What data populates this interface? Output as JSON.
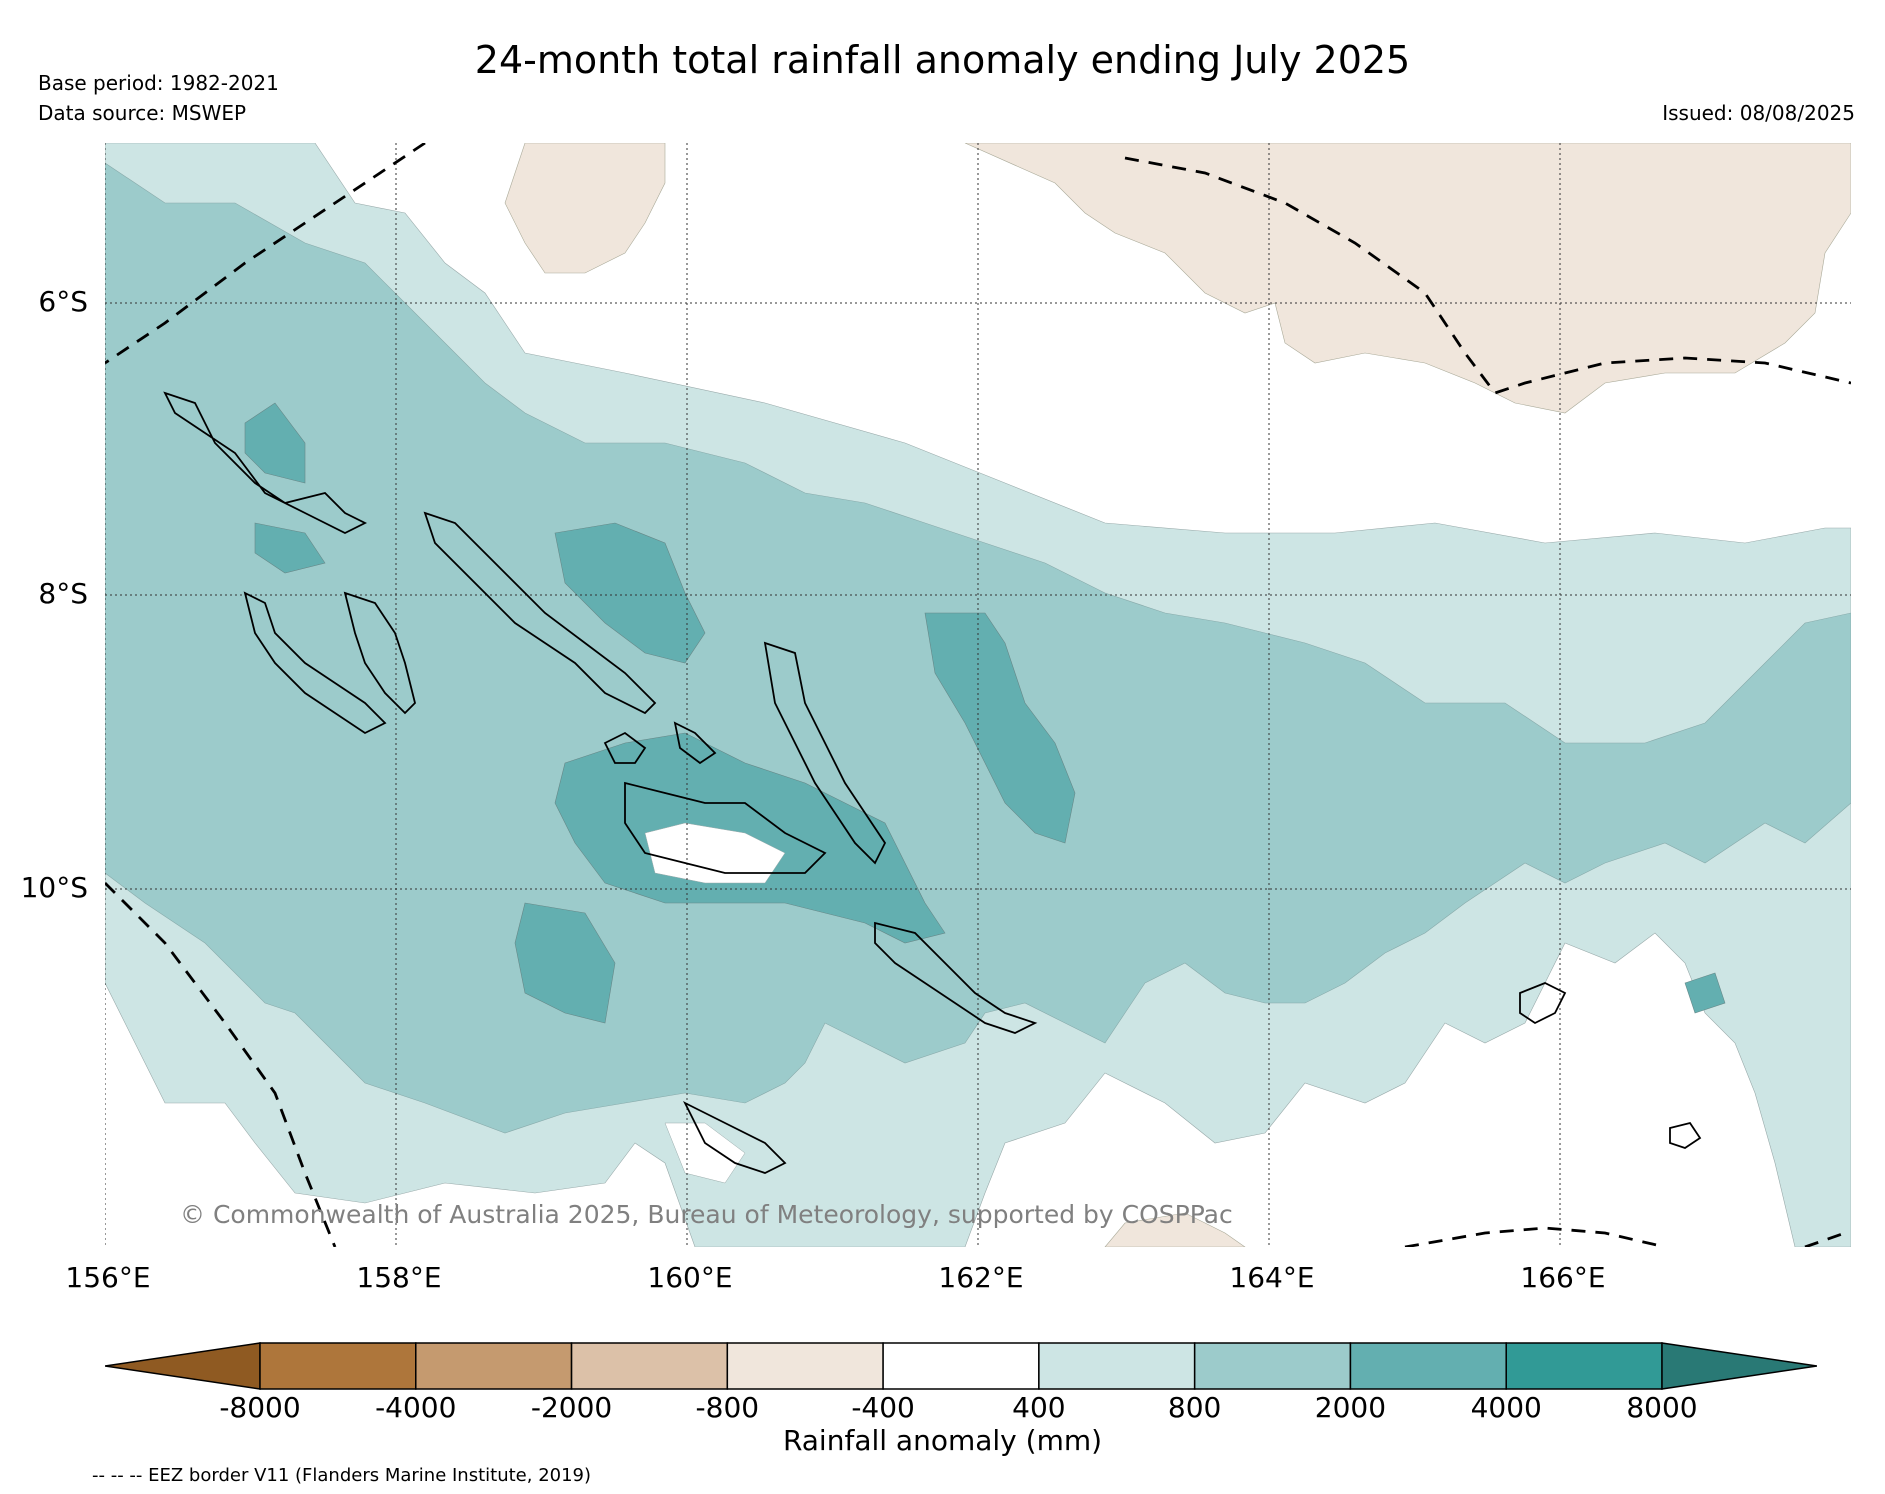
{
  "header": {
    "title": "24-month total rainfall anomaly ending July 2025",
    "base_period": "Base period: 1982-2021",
    "data_source": "Data source: MSWEP",
    "issued": "Issued: 08/08/2025"
  },
  "map": {
    "lat_labels": [
      "6°S",
      "8°S",
      "10°S"
    ],
    "lon_labels": [
      "156°E",
      "158°E",
      "160°E",
      "162°E",
      "164°E",
      "166°E"
    ],
    "copyright": "© Commonwealth of Australia 2025, Bureau of Meteorology, supported by COSPPac",
    "colors": {
      "ocean_neutral": "#ffffff",
      "light_teal": "#cde5e4",
      "mid_teal": "#9ccbcb",
      "dark_teal": "#63afb0",
      "light_tan": "#f0e6dc",
      "coastline": "#000000",
      "eez_border": "#000000"
    }
  },
  "colorbar": {
    "label": "Rainfall anomaly (mm)",
    "ticks": [
      "-8000",
      "-4000",
      "-2000",
      "-800",
      "-400",
      "400",
      "800",
      "2000",
      "4000",
      "8000"
    ],
    "colors": [
      "#8f5a22",
      "#ae763b",
      "#c59a6f",
      "#dcc1a8",
      "#f0e6dc",
      "#ffffff",
      "#cde5e4",
      "#9ccbcb",
      "#63afb0",
      "#319a96",
      "#297975"
    ]
  },
  "footnote": "-- -- -- EEZ border V11 (Flanders Marine Institute, 2019)"
}
